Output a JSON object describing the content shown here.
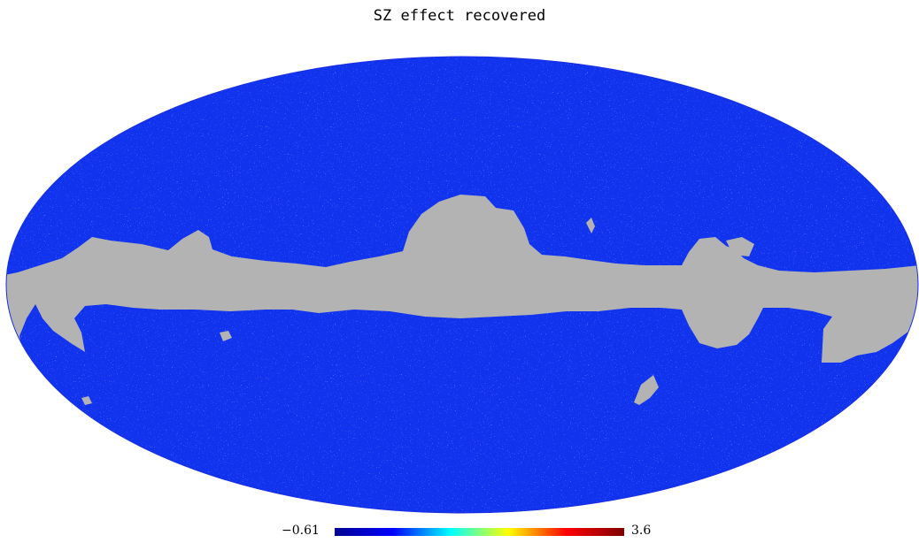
{
  "title": "SZ effect recovered",
  "projection": "mollweide",
  "colormap": "jet",
  "colorbar": {
    "min_label": "−0.61",
    "max_label": "3.6",
    "min": -0.61,
    "max": 3.6
  },
  "colors": {
    "background_field": "#1133ee",
    "masked_region": "#b3b3b3"
  }
}
